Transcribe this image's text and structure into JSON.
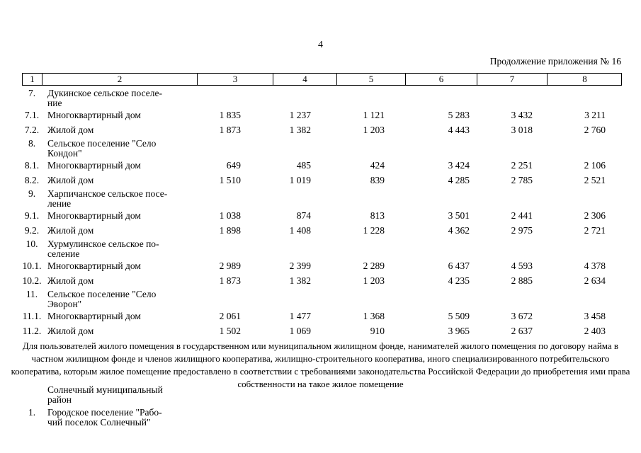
{
  "page": {
    "number": "4",
    "continuation": "Продолжение приложения № 16"
  },
  "table": {
    "header_cols": [
      "1",
      "2",
      "3",
      "4",
      "5",
      "6",
      "7",
      "8"
    ],
    "rows": [
      {
        "num": "7.",
        "label": "Дукинское сельское поселе-\nние",
        "values": [
          "",
          "",
          "",
          "",
          "",
          ""
        ]
      },
      {
        "num": "7.1.",
        "label": "Многоквартирный дом",
        "values": [
          "1 835",
          "1 237",
          "1 121",
          "5 283",
          "3 432",
          "3 211"
        ]
      },
      {
        "num": "7.2.",
        "label": "Жилой дом",
        "values": [
          "1 873",
          "1 382",
          "1 203",
          "4 443",
          "3 018",
          "2 760"
        ]
      },
      {
        "num": "8.",
        "label": "Сельское поселение \"Село\nКондон\"",
        "values": [
          "",
          "",
          "",
          "",
          "",
          ""
        ]
      },
      {
        "num": "8.1.",
        "label": "Многоквартирный дом",
        "values": [
          "649",
          "485",
          "424",
          "3 424",
          "2 251",
          "2 106"
        ]
      },
      {
        "num": "8.2.",
        "label": "Жилой дом",
        "values": [
          "1 510",
          "1 019",
          "839",
          "4 285",
          "2 785",
          "2 521"
        ]
      },
      {
        "num": "9.",
        "label": "Харпичанское сельское посе-\nление",
        "values": [
          "",
          "",
          "",
          "",
          "",
          ""
        ]
      },
      {
        "num": "9.1.",
        "label": "Многоквартирный дом",
        "values": [
          "1 038",
          "874",
          "813",
          "3 501",
          "2 441",
          "2 306"
        ]
      },
      {
        "num": "9.2.",
        "label": "Жилой дом",
        "values": [
          "1 898",
          "1 408",
          "1 228",
          "4 362",
          "2 975",
          "2 721"
        ]
      },
      {
        "num": "10.",
        "label": "Хурмулинское сельское по-\nселение",
        "values": [
          "",
          "",
          "",
          "",
          "",
          ""
        ]
      },
      {
        "num": "10.1.",
        "label": "Многоквартирный дом",
        "values": [
          "2 989",
          "2 399",
          "2 289",
          "6 437",
          "4 593",
          "4 378"
        ]
      },
      {
        "num": "10.2.",
        "label": "Жилой дом",
        "values": [
          "1 873",
          "1 382",
          "1 203",
          "4 235",
          "2 885",
          "2 634"
        ]
      },
      {
        "num": "11.",
        "label": "Сельское поселение \"Село\nЭворон\"",
        "values": [
          "",
          "",
          "",
          "",
          "",
          ""
        ]
      },
      {
        "num": "11.1.",
        "label": "Многоквартирный дом",
        "values": [
          "2 061",
          "1 477",
          "1 368",
          "5 509",
          "3 672",
          "3 458"
        ]
      },
      {
        "num": "11.2.",
        "label": "Жилой дом",
        "values": [
          "1 502",
          "1 069",
          "910",
          "3 965",
          "2 637",
          "2 403"
        ]
      }
    ]
  },
  "footnote": "Для пользователей жилого помещения в государственном или муниципальном жилищном фонде, нанимателей жилого помещения по договору найма в частном жилищном фонде и членов жилищного кооператива, жилищно-строительного кооператива, иного специализированного потребительского кооператива, которым жилое помещение предоставлено в соответствии с требованиями законодательства Российской Федерации до приобретения ими права собственности на такое жилое помещение",
  "bottom_rows": [
    {
      "num": "",
      "label": "Солнечный муниципальный\nрайон"
    },
    {
      "num": "1.",
      "label": "Городское поселение \"Рабо-\nчий поселок Солнечный\""
    }
  ]
}
